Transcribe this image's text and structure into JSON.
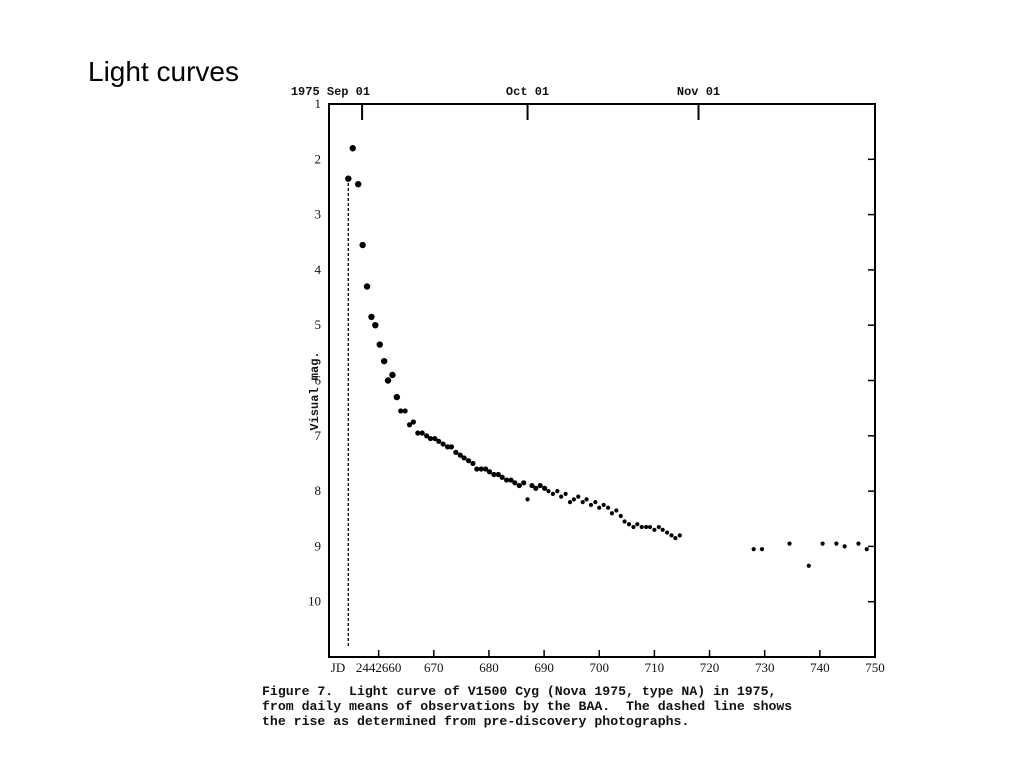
{
  "slide": {
    "title": "Light curves"
  },
  "caption": {
    "line1": "Figure 7.  Light curve of V1500 Cyg (Nova 1975, type NA) in 1975,",
    "line2": "from daily means of observations by the BAA.  The dashed line shows",
    "line3": "the rise as determined from pre-discovery photographs."
  },
  "chart_data": {
    "type": "scatter",
    "title": "",
    "xlabel": "JD",
    "ylabel": "Visual mag.",
    "xlim": [
      2442651,
      2442750
    ],
    "ylim": [
      11,
      1
    ],
    "y_inverted": true,
    "x_ticks": [
      {
        "x": 2442660,
        "label": "2442660"
      },
      {
        "x": 2442670,
        "label": "670"
      },
      {
        "x": 2442680,
        "label": "680"
      },
      {
        "x": 2442690,
        "label": "690"
      },
      {
        "x": 2442700,
        "label": "700"
      },
      {
        "x": 2442710,
        "label": "710"
      },
      {
        "x": 2442720,
        "label": "720"
      },
      {
        "x": 2442730,
        "label": "730"
      },
      {
        "x": 2442740,
        "label": "740"
      },
      {
        "x": 2442750,
        "label": "750"
      }
    ],
    "x_axis_prefix_label": "JD",
    "top_ticks": [
      {
        "x": 2442657,
        "label": "1975 Sep 01"
      },
      {
        "x": 2442687,
        "label": "Oct 01"
      },
      {
        "x": 2442718,
        "label": "Nov 01"
      }
    ],
    "y_ticks": [
      {
        "y": 1,
        "label": "1"
      },
      {
        "y": 2,
        "label": "2"
      },
      {
        "y": 3,
        "label": "3"
      },
      {
        "y": 4,
        "label": "4"
      },
      {
        "y": 5,
        "label": "5"
      },
      {
        "y": 6,
        "label": "6"
      },
      {
        "y": 7,
        "label": "7"
      },
      {
        "y": 8,
        "label": "8"
      },
      {
        "y": 9,
        "label": "9"
      },
      {
        "y": 10,
        "label": "10"
      }
    ],
    "grid": false,
    "rise_line": {
      "style": "dashed",
      "x": 2442654.5,
      "y_from": 10.8,
      "y_to": 2.4
    },
    "series": [
      {
        "points": [
          [
            2442654.5,
            2.35
          ],
          [
            2442655.3,
            1.8
          ],
          [
            2442656.3,
            2.45
          ],
          [
            2442657.1,
            3.55
          ],
          [
            2442657.9,
            4.3
          ],
          [
            2442658.7,
            4.85
          ],
          [
            2442659.4,
            5.0
          ],
          [
            2442660.2,
            5.35
          ],
          [
            2442661.0,
            5.65
          ],
          [
            2442661.7,
            6.0
          ],
          [
            2442662.5,
            5.9
          ],
          [
            2442663.3,
            6.3
          ],
          [
            2442664.0,
            6.55
          ],
          [
            2442664.8,
            6.55
          ],
          [
            2442665.6,
            6.8
          ],
          [
            2442666.3,
            6.75
          ],
          [
            2442667.1,
            6.95
          ],
          [
            2442667.9,
            6.95
          ],
          [
            2442668.7,
            7.0
          ],
          [
            2442669.4,
            7.05
          ],
          [
            2442670.2,
            7.05
          ],
          [
            2442670.9,
            7.1
          ],
          [
            2442671.7,
            7.15
          ],
          [
            2442672.5,
            7.2
          ],
          [
            2442673.2,
            7.2
          ],
          [
            2442674.0,
            7.3
          ],
          [
            2442674.8,
            7.35
          ],
          [
            2442675.5,
            7.4
          ],
          [
            2442676.3,
            7.45
          ],
          [
            2442677.1,
            7.5
          ],
          [
            2442677.8,
            7.6
          ],
          [
            2442678.6,
            7.6
          ],
          [
            2442679.4,
            7.6
          ],
          [
            2442680.1,
            7.65
          ],
          [
            2442680.9,
            7.7
          ],
          [
            2442681.7,
            7.7
          ],
          [
            2442682.4,
            7.75
          ],
          [
            2442683.2,
            7.8
          ],
          [
            2442684.0,
            7.8
          ],
          [
            2442684.7,
            7.85
          ],
          [
            2442685.5,
            7.9
          ],
          [
            2442686.3,
            7.85
          ],
          [
            2442687.0,
            8.15
          ],
          [
            2442687.8,
            7.9
          ],
          [
            2442688.5,
            7.95
          ],
          [
            2442689.3,
            7.9
          ],
          [
            2442690.1,
            7.95
          ],
          [
            2442690.8,
            8.0
          ],
          [
            2442691.6,
            8.05
          ],
          [
            2442692.4,
            8.0
          ],
          [
            2442693.1,
            8.1
          ],
          [
            2442693.9,
            8.05
          ],
          [
            2442694.7,
            8.2
          ],
          [
            2442695.4,
            8.15
          ],
          [
            2442696.2,
            8.1
          ],
          [
            2442697.0,
            8.2
          ],
          [
            2442697.7,
            8.15
          ],
          [
            2442698.5,
            8.25
          ],
          [
            2442699.3,
            8.2
          ],
          [
            2442700.0,
            8.3
          ],
          [
            2442700.8,
            8.25
          ],
          [
            2442701.6,
            8.3
          ],
          [
            2442702.3,
            8.4
          ],
          [
            2442703.1,
            8.35
          ],
          [
            2442703.9,
            8.45
          ],
          [
            2442704.6,
            8.55
          ],
          [
            2442705.4,
            8.6
          ],
          [
            2442706.2,
            8.65
          ],
          [
            2442706.9,
            8.6
          ],
          [
            2442707.7,
            8.65
          ],
          [
            2442708.5,
            8.65
          ],
          [
            2442709.2,
            8.65
          ],
          [
            2442710.0,
            8.7
          ],
          [
            2442710.8,
            8.65
          ],
          [
            2442711.5,
            8.7
          ],
          [
            2442712.3,
            8.75
          ],
          [
            2442713.1,
            8.8
          ],
          [
            2442713.8,
            8.85
          ],
          [
            2442714.6,
            8.8
          ],
          [
            2442728.0,
            9.05
          ],
          [
            2442729.5,
            9.05
          ],
          [
            2442734.5,
            8.95
          ],
          [
            2442738.0,
            9.35
          ],
          [
            2442740.5,
            8.95
          ],
          [
            2442743.0,
            8.95
          ],
          [
            2442744.5,
            9.0
          ],
          [
            2442747.0,
            8.95
          ],
          [
            2442748.5,
            9.05
          ]
        ]
      }
    ]
  }
}
